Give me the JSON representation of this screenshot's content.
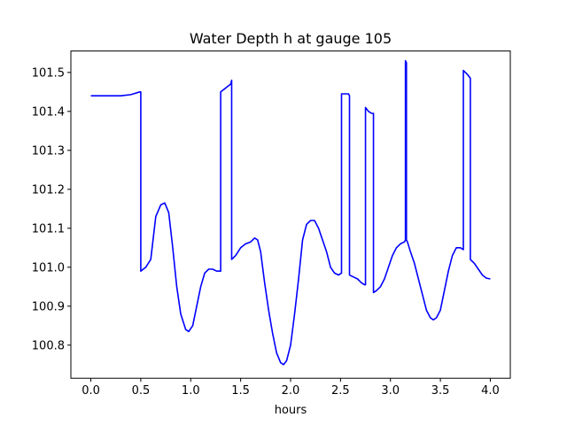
{
  "chart_data": {
    "type": "line",
    "title": "Water Depth h at gauge 105",
    "xlabel": "hours",
    "ylabel": "",
    "xlim": [
      -0.2,
      4.2
    ],
    "ylim": [
      100.715,
      101.555
    ],
    "xticks": [
      "0.0",
      "0.5",
      "1.0",
      "1.5",
      "2.0",
      "2.5",
      "3.0",
      "3.5",
      "4.0"
    ],
    "xtick_values": [
      0.0,
      0.5,
      1.0,
      1.5,
      2.0,
      2.5,
      3.0,
      3.5,
      4.0
    ],
    "yticks": [
      "100.8",
      "100.9",
      "101.0",
      "101.1",
      "101.2",
      "101.3",
      "101.4",
      "101.5"
    ],
    "ytick_values": [
      100.8,
      100.9,
      101.0,
      101.1,
      101.2,
      101.3,
      101.4,
      101.5
    ],
    "grid": false,
    "series": [
      {
        "color": "#0000ff",
        "x": [
          0.0,
          0.1,
          0.2,
          0.3,
          0.4,
          0.49,
          0.5,
          0.5,
          0.55,
          0.6,
          0.65,
          0.7,
          0.74,
          0.78,
          0.82,
          0.86,
          0.9,
          0.95,
          0.98,
          1.02,
          1.06,
          1.1,
          1.14,
          1.18,
          1.22,
          1.26,
          1.29,
          1.3,
          1.3,
          1.35,
          1.4,
          1.41,
          1.41,
          1.45,
          1.5,
          1.55,
          1.6,
          1.64,
          1.67,
          1.7,
          1.74,
          1.78,
          1.82,
          1.86,
          1.9,
          1.93,
          1.96,
          2.0,
          2.04,
          2.08,
          2.12,
          2.16,
          2.2,
          2.24,
          2.28,
          2.32,
          2.36,
          2.4,
          2.44,
          2.48,
          2.51,
          2.51,
          2.55,
          2.58,
          2.59,
          2.59,
          2.63,
          2.67,
          2.71,
          2.74,
          2.75,
          2.75,
          2.78,
          2.81,
          2.83,
          2.83,
          2.86,
          2.9,
          2.94,
          2.98,
          3.02,
          3.06,
          3.1,
          3.14,
          3.15,
          3.15,
          3.16,
          3.16,
          3.17,
          3.2,
          3.24,
          3.28,
          3.32,
          3.36,
          3.4,
          3.43,
          3.46,
          3.5,
          3.54,
          3.58,
          3.62,
          3.66,
          3.7,
          3.73,
          3.73,
          3.77,
          3.8,
          3.8,
          3.84,
          3.88,
          3.92,
          3.96,
          4.0
        ],
        "y": [
          101.44,
          101.44,
          101.44,
          101.44,
          101.443,
          101.45,
          101.45,
          100.99,
          101.0,
          101.02,
          101.13,
          101.16,
          101.165,
          101.14,
          101.05,
          100.95,
          100.88,
          100.84,
          100.835,
          100.85,
          100.9,
          100.95,
          100.985,
          100.995,
          100.995,
          100.99,
          100.99,
          100.99,
          101.45,
          101.46,
          101.47,
          101.48,
          101.02,
          101.03,
          101.05,
          101.06,
          101.065,
          101.075,
          101.07,
          101.04,
          100.96,
          100.89,
          100.83,
          100.78,
          100.755,
          100.75,
          100.76,
          100.8,
          100.88,
          100.97,
          101.07,
          101.11,
          101.12,
          101.12,
          101.1,
          101.07,
          101.04,
          101.0,
          100.985,
          100.98,
          100.985,
          101.445,
          101.445,
          101.445,
          101.44,
          100.98,
          100.975,
          100.97,
          100.96,
          100.955,
          100.955,
          101.41,
          101.4,
          101.395,
          101.395,
          100.935,
          100.94,
          100.95,
          100.97,
          101.0,
          101.03,
          101.05,
          101.06,
          101.065,
          101.07,
          101.53,
          101.525,
          101.07,
          101.065,
          101.04,
          101.01,
          100.97,
          100.93,
          100.89,
          100.87,
          100.865,
          100.87,
          100.89,
          100.94,
          100.99,
          101.03,
          101.05,
          101.05,
          101.045,
          101.505,
          101.495,
          101.485,
          101.02,
          101.01,
          100.995,
          100.98,
          100.972,
          100.97
        ]
      }
    ]
  }
}
